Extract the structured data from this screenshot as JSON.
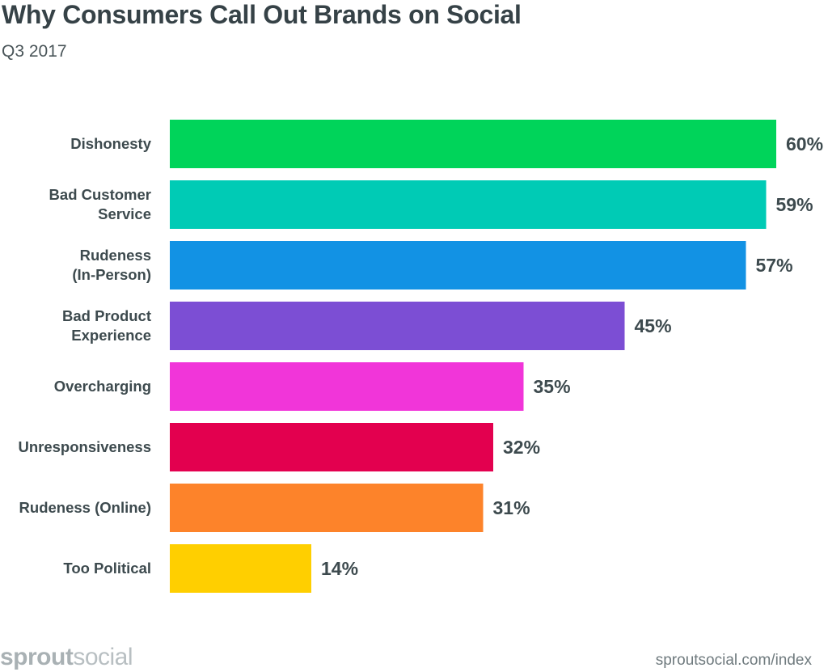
{
  "title": "Why Consumers Call Out Brands on Social",
  "subtitle": "Q3 2017",
  "footer": {
    "logo_bold": "sprout",
    "logo_light": "social",
    "source": "sproutsocial.com/index"
  },
  "chart_data": {
    "type": "bar",
    "orientation": "horizontal",
    "title": "Why Consumers Call Out Brands on Social",
    "subtitle": "Q3 2017",
    "xlabel": "",
    "ylabel": "",
    "xlim": [
      0,
      60
    ],
    "grid": false,
    "categories": [
      [
        "Dishonesty"
      ],
      [
        "Bad Customer",
        "Service"
      ],
      [
        "Rudeness",
        "(In-Person)"
      ],
      [
        "Bad Product",
        "Experience"
      ],
      [
        "Overcharging"
      ],
      [
        "Unresponsiveness"
      ],
      [
        "Rudeness (Online)"
      ],
      [
        "Too Political"
      ]
    ],
    "values": [
      60,
      59,
      57,
      45,
      35,
      32,
      31,
      14
    ],
    "value_labels": [
      "60%",
      "59%",
      "57%",
      "45%",
      "35%",
      "32%",
      "31%",
      "14%"
    ],
    "colors": [
      "#00d45a",
      "#00cbb5",
      "#1292e4",
      "#7c4ed4",
      "#f135d9",
      "#e3004f",
      "#fd832a",
      "#ffcf00"
    ]
  }
}
